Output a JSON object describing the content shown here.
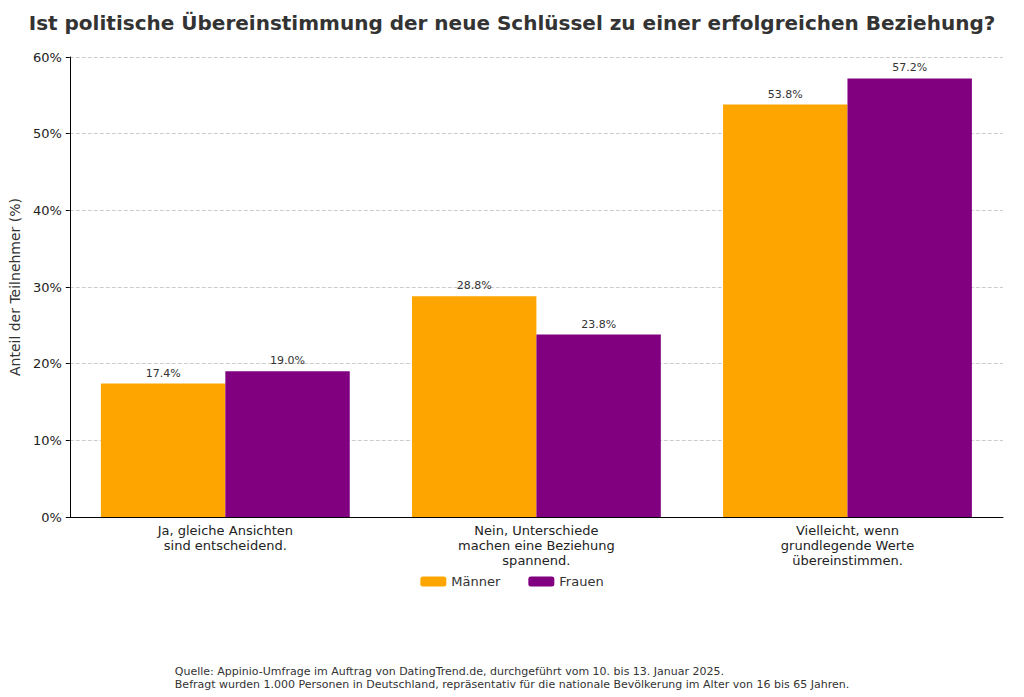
{
  "chart_data": {
    "type": "bar",
    "title": "Ist politische Übereinstimmung der neue Schlüssel zu einer erfolgreichen Beziehung?",
    "y_label": "Anteil der Teilnehmer (%)",
    "categories": [
      "Ja, gleiche Ansichten\nsind entscheidend.",
      "Nein, Unterschiede\nmachen eine Beziehung\nspannend.",
      "Vielleicht, wenn\ngrundlegende Werte\nübereinstimmen."
    ],
    "series": [
      {
        "name": "Männer",
        "color": "#ffa500",
        "values": [
          17.4,
          28.8,
          53.8
        ],
        "value_labels": [
          "17.4%",
          "28.8%",
          "53.8%"
        ]
      },
      {
        "name": "Frauen",
        "color": "#800080",
        "values": [
          19.0,
          23.8,
          57.2
        ],
        "value_labels": [
          "19.0%",
          "23.8%",
          "57.2%"
        ]
      }
    ],
    "ylim": [
      0,
      60
    ],
    "yticks": [
      {
        "value": 0,
        "label": "0%"
      },
      {
        "value": 10,
        "label": "10%"
      },
      {
        "value": 20,
        "label": "20%"
      },
      {
        "value": 30,
        "label": "30%"
      },
      {
        "value": 40,
        "label": "40%"
      },
      {
        "value": 50,
        "label": "50%"
      },
      {
        "value": 60,
        "label": "60%"
      }
    ],
    "grid": true,
    "legend": "bottom",
    "data_labels": true,
    "annotations": [
      "Quelle: Appinio-Umfrage im Auftrag von DatingTrend.de, durchgeführt vom 10. bis 13. Januar 2025.",
      "Befragt wurden 1.000 Personen in Deutschland, repräsentativ für die nationale Bevölkerung im Alter von 16 bis 65 Jahren."
    ]
  }
}
